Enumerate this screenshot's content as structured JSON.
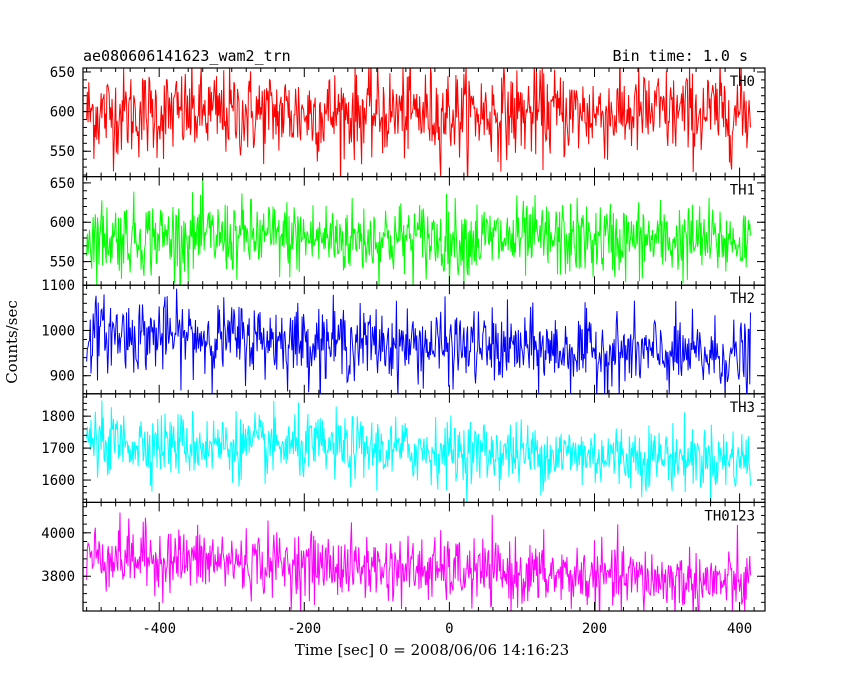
{
  "chart_data": {
    "type": "line",
    "title": "ae080606141623_wam2_trn",
    "subtitle": "Bin time: 1.0 s",
    "xlabel": "Time [sec] 0 = 2008/06/06 14:16:23",
    "ylabel": "Counts/sec",
    "xlim": [
      -505,
      435
    ],
    "xticks": [
      -400,
      -200,
      0,
      200,
      400
    ],
    "x_range": [
      -500,
      415
    ],
    "x_step": 1,
    "grid": false,
    "panels": [
      {
        "name": "TH0",
        "color": "#ff0000",
        "ylim": [
          518,
          655
        ],
        "yticks": [
          550,
          600,
          650
        ],
        "mean": 598,
        "noise": 28,
        "trend": 0
      },
      {
        "name": "TH1",
        "color": "#00ff00",
        "ylim": [
          520,
          658
        ],
        "yticks": [
          550,
          600,
          650
        ],
        "mean": 582,
        "noise": 24,
        "trend": -6
      },
      {
        "name": "TH2",
        "color": "#0000ff",
        "ylim": [
          860,
          1100
        ],
        "yticks": [
          900,
          1000,
          1100
        ],
        "mean": 995,
        "noise": 40,
        "trend": -55
      },
      {
        "name": "TH3",
        "color": "#00ffff",
        "ylim": [
          1530,
          1870
        ],
        "yticks": [
          1600,
          1700,
          1800
        ],
        "mean": 1720,
        "noise": 50,
        "trend": -55
      },
      {
        "name": "TH0123",
        "color": "#ff00ff",
        "ylim": [
          3640,
          4140
        ],
        "yticks": [
          3800,
          4000
        ],
        "mean": 3895,
        "noise": 75,
        "trend": -130
      }
    ]
  }
}
